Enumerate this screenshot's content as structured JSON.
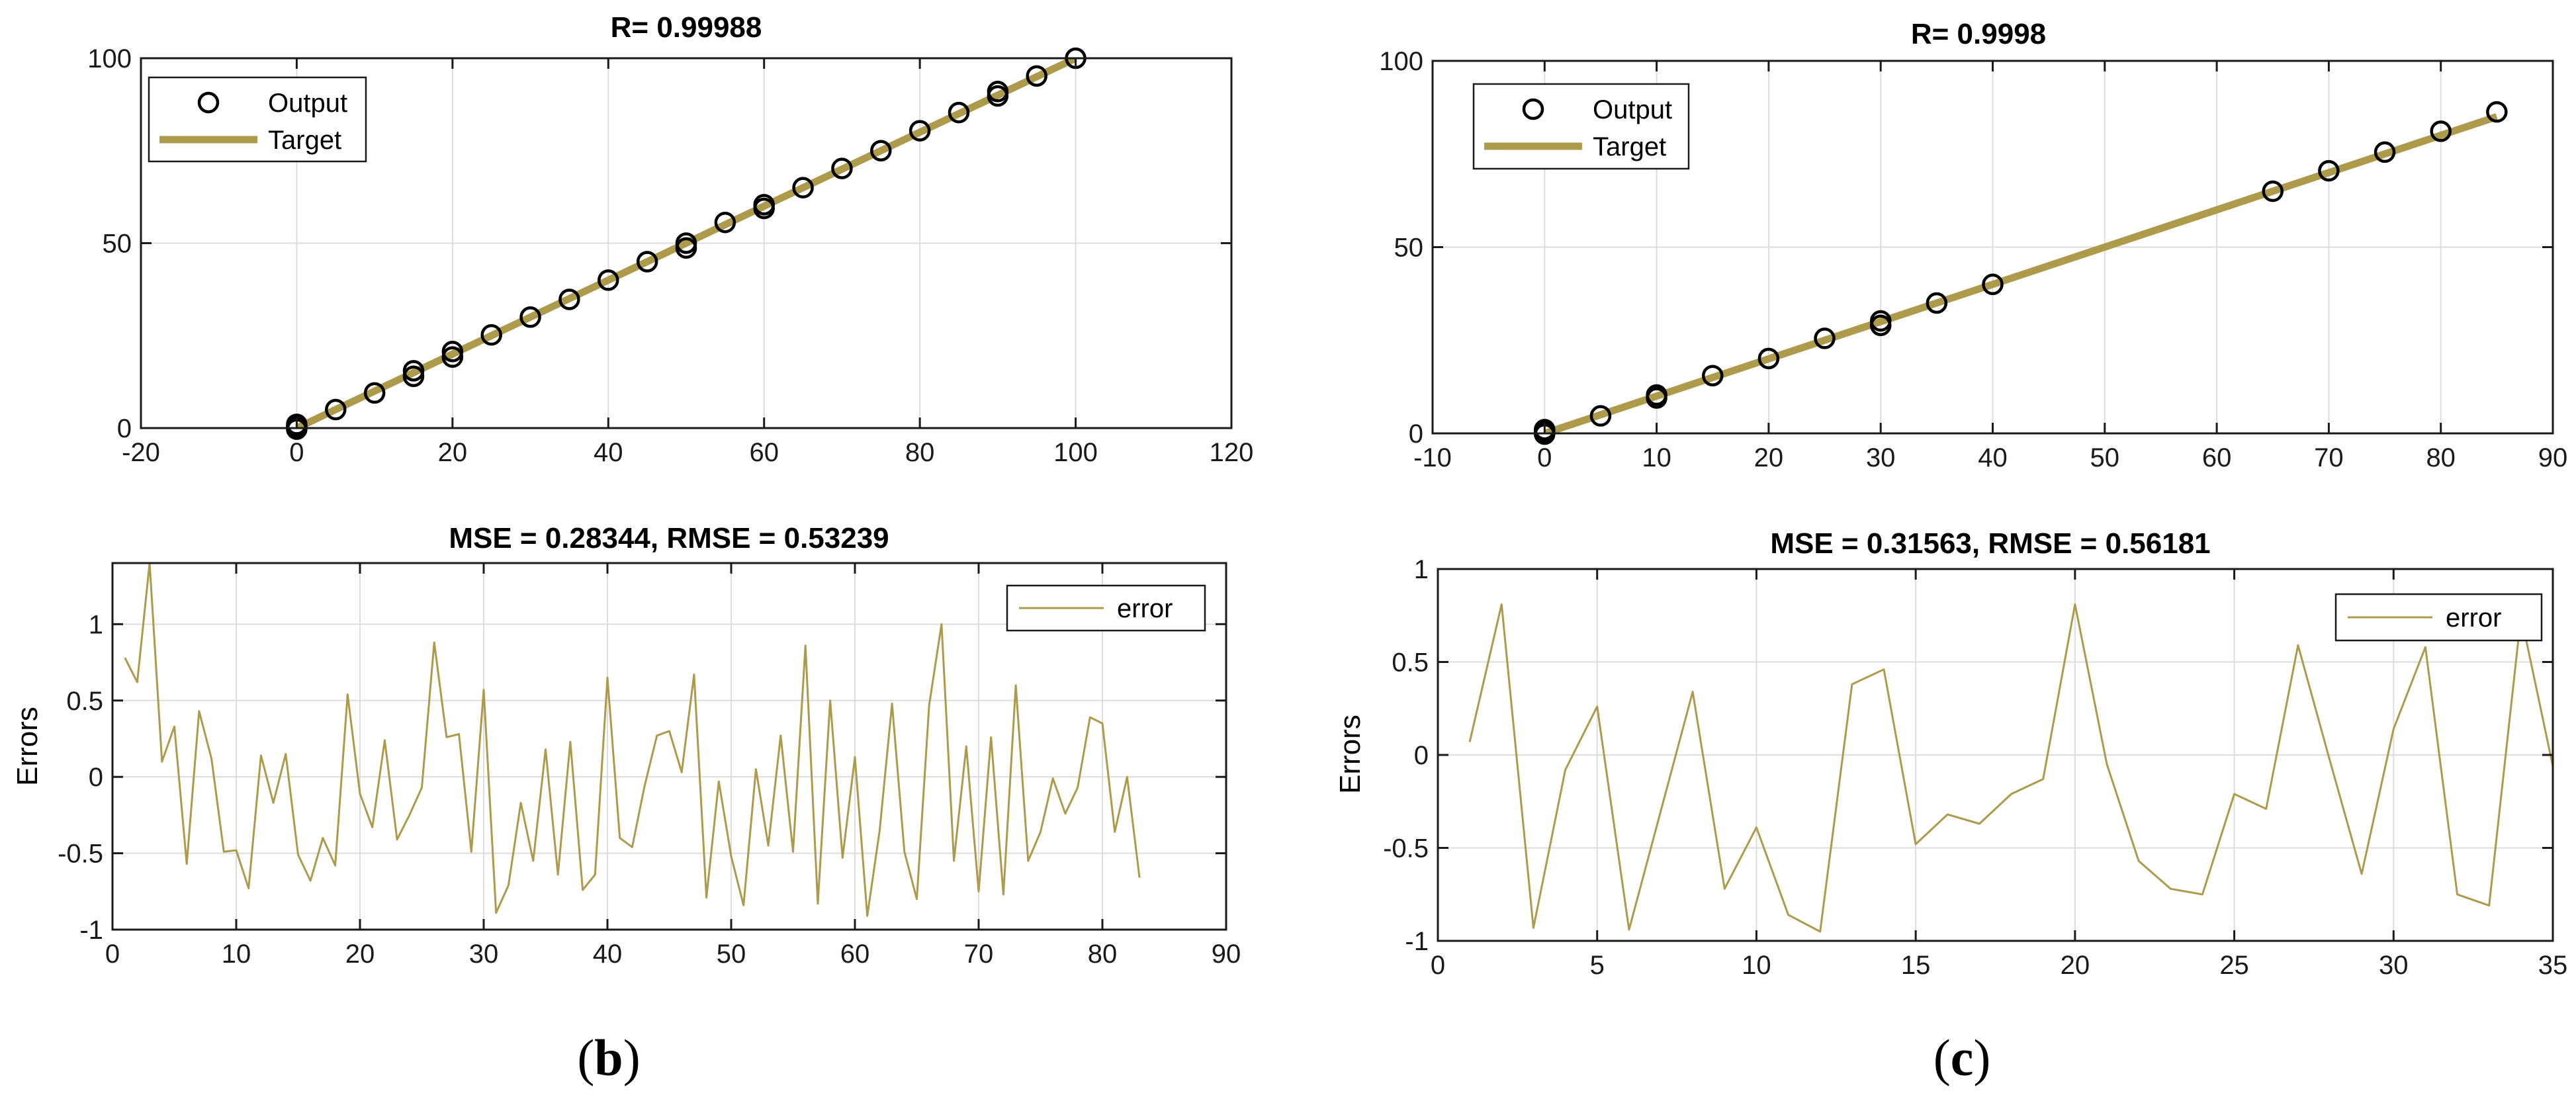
{
  "colors": {
    "line": "#ad9a4b",
    "grid": "#dddddd",
    "axis": "#1a1a1a",
    "marker": "#000000"
  },
  "captions": [
    {
      "open": "(",
      "letter": "b",
      "close": ")"
    },
    {
      "open": "(",
      "letter": "c",
      "close": ")"
    }
  ],
  "chart_data": [
    {
      "id": "b-top",
      "type": "scatter",
      "title": "R= 0.99988",
      "xlabel": "",
      "ylabel": "",
      "xlim": [
        -20,
        120
      ],
      "ylim": [
        0,
        100
      ],
      "xticks": [
        -20,
        0,
        20,
        40,
        60,
        80,
        100,
        120
      ],
      "yticks": [
        0,
        50,
        100
      ],
      "legend": {
        "position": "top-left",
        "entries": [
          "Output",
          "Target"
        ]
      },
      "series": [
        {
          "name": "Output",
          "style": "marker",
          "x": [
            0,
            0,
            0,
            0,
            0,
            5,
            10,
            15,
            15,
            20,
            20,
            25,
            30,
            35,
            40,
            45,
            50,
            50,
            55,
            60,
            60,
            65,
            70,
            75,
            80,
            85,
            90,
            90,
            95,
            100
          ],
          "y": [
            0,
            0.5,
            1,
            0.3,
            -0.3,
            5,
            9.5,
            15.5,
            14,
            20.7,
            19.2,
            25.2,
            30,
            34.8,
            40,
            45,
            50,
            48.7,
            55.6,
            60.4,
            59.4,
            65,
            70.2,
            75,
            80.4,
            85.3,
            91,
            89.8,
            95.2,
            100
          ]
        },
        {
          "name": "Target",
          "style": "line",
          "x": [
            0,
            100
          ],
          "y": [
            0,
            100
          ]
        }
      ]
    },
    {
      "id": "b-bottom",
      "type": "line",
      "title": "MSE = 0.28344, RMSE = 0.53239",
      "xlabel": "",
      "ylabel": "Errors",
      "xlim": [
        0,
        90
      ],
      "ylim": [
        -1,
        1.4
      ],
      "xticks": [
        0,
        10,
        20,
        30,
        40,
        50,
        60,
        70,
        80,
        90
      ],
      "yticks": [
        -1,
        -0.5,
        0,
        0.5,
        1
      ],
      "legend": {
        "position": "top-right",
        "entries": [
          "error"
        ]
      },
      "series": [
        {
          "name": "error",
          "style": "line",
          "x": [
            1,
            2,
            3,
            4,
            5,
            6,
            7,
            8,
            9,
            10,
            11,
            12,
            13,
            14,
            15,
            16,
            17,
            18,
            19,
            20,
            21,
            22,
            23,
            24,
            25,
            26,
            27,
            28,
            29,
            30,
            31,
            32,
            33,
            34,
            35,
            36,
            37,
            38,
            39,
            40,
            41,
            42,
            43,
            44,
            45,
            46,
            47,
            48,
            49,
            50,
            51,
            52,
            53,
            54,
            55,
            56,
            57,
            58,
            59,
            60,
            61,
            62,
            63,
            64,
            65,
            66,
            67,
            68,
            69,
            70,
            71,
            72,
            73,
            74,
            75,
            76,
            77,
            78,
            79,
            80,
            81,
            82,
            83
          ],
          "y": [
            0.78,
            0.62,
            1.4,
            0.1,
            0.33,
            -0.57,
            0.43,
            0.12,
            -0.49,
            -0.48,
            -0.73,
            0.14,
            -0.17,
            0.15,
            -0.51,
            -0.68,
            -0.4,
            -0.58,
            0.54,
            -0.11,
            -0.33,
            0.24,
            -0.41,
            -0.25,
            -0.07,
            0.88,
            0.26,
            0.28,
            -0.49,
            0.57,
            -0.89,
            -0.71,
            -0.17,
            -0.55,
            0.18,
            -0.64,
            0.23,
            -0.74,
            -0.64,
            0.65,
            -0.4,
            -0.46,
            -0.06,
            0.27,
            0.3,
            0.03,
            0.67,
            -0.79,
            -0.03,
            -0.52,
            -0.84,
            0.05,
            -0.45,
            0.27,
            -0.49,
            0.86,
            -0.83,
            0.5,
            -0.53,
            0.13,
            -0.91,
            -0.35,
            0.48,
            -0.49,
            -0.8,
            0.47,
            1.0,
            -0.55,
            0.2,
            -0.75,
            0.26,
            -0.77,
            0.6,
            -0.55,
            -0.36,
            -0.01,
            -0.24,
            -0.07,
            0.39,
            0.35,
            -0.36,
            0.0,
            -0.66
          ]
        }
      ]
    },
    {
      "id": "c-top",
      "type": "scatter",
      "title": "R= 0.9998",
      "xlabel": "",
      "ylabel": "",
      "xlim": [
        -10,
        90
      ],
      "ylim": [
        0,
        100
      ],
      "xticks": [
        -10,
        0,
        10,
        20,
        30,
        40,
        50,
        60,
        70,
        80,
        90
      ],
      "yticks": [
        0,
        50,
        100
      ],
      "legend": {
        "position": "top-left",
        "entries": [
          "Output",
          "Target"
        ]
      },
      "series": [
        {
          "name": "Output",
          "style": "marker",
          "x": [
            0,
            0,
            0,
            0,
            5,
            10,
            10,
            15,
            20,
            25,
            30,
            30,
            35,
            40,
            65,
            70,
            75,
            80,
            85
          ],
          "y": [
            0.8,
            0.3,
            -0.2,
            1.0,
            4.7,
            10.3,
            9.5,
            15.5,
            20.1,
            25.5,
            30.2,
            29.0,
            35,
            40,
            65,
            70.5,
            75.5,
            81.1,
            86.3
          ]
        },
        {
          "name": "Target",
          "style": "line",
          "x": [
            0,
            85
          ],
          "y": [
            0,
            85
          ]
        }
      ]
    },
    {
      "id": "c-bottom",
      "type": "line",
      "title": "MSE = 0.31563, RMSE = 0.56181",
      "xlabel": "",
      "ylabel": "Errors",
      "xlim": [
        0,
        35
      ],
      "ylim": [
        -1,
        1
      ],
      "xticks": [
        0,
        5,
        10,
        15,
        20,
        25,
        30,
        35
      ],
      "yticks": [
        -1,
        -0.5,
        0,
        0.5,
        1
      ],
      "legend": {
        "position": "top-right",
        "entries": [
          "error"
        ]
      },
      "series": [
        {
          "name": "error",
          "style": "line",
          "x": [
            1,
            2,
            3,
            4,
            5,
            6,
            7,
            8,
            9,
            10,
            11,
            12,
            13,
            14,
            15,
            16,
            17,
            18,
            19,
            20,
            21,
            22,
            23,
            24,
            25,
            26,
            27,
            28,
            29,
            30,
            31,
            32,
            33,
            34,
            35
          ],
          "y": [
            0.07,
            0.81,
            -0.93,
            -0.08,
            0.26,
            -0.94,
            -0.3,
            0.34,
            -0.72,
            -0.39,
            -0.86,
            -0.95,
            0.38,
            0.46,
            -0.48,
            -0.32,
            -0.37,
            -0.21,
            -0.13,
            0.81,
            -0.05,
            -0.57,
            -0.72,
            -0.75,
            -0.21,
            -0.29,
            0.59,
            -0.03,
            -0.64,
            0.14,
            0.58,
            -0.75,
            -0.81,
            0.75,
            -0.06
          ]
        }
      ]
    }
  ]
}
